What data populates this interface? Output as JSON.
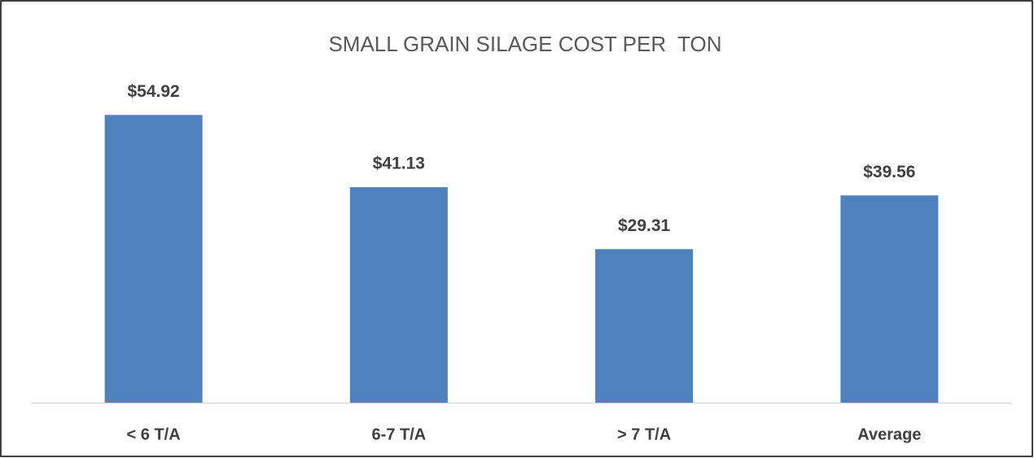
{
  "chart_data": {
    "type": "bar",
    "title": "SMALL GRAIN SILAGE COST PER  TON",
    "categories": [
      "< 6 T/A",
      "6-7 T/A",
      "> 7 T/A",
      "Average"
    ],
    "values": [
      54.92,
      41.13,
      29.31,
      39.56
    ],
    "value_labels": [
      "$54.92",
      "$41.13",
      "$29.31",
      "$39.56"
    ],
    "color": "#4f81bd"
  }
}
